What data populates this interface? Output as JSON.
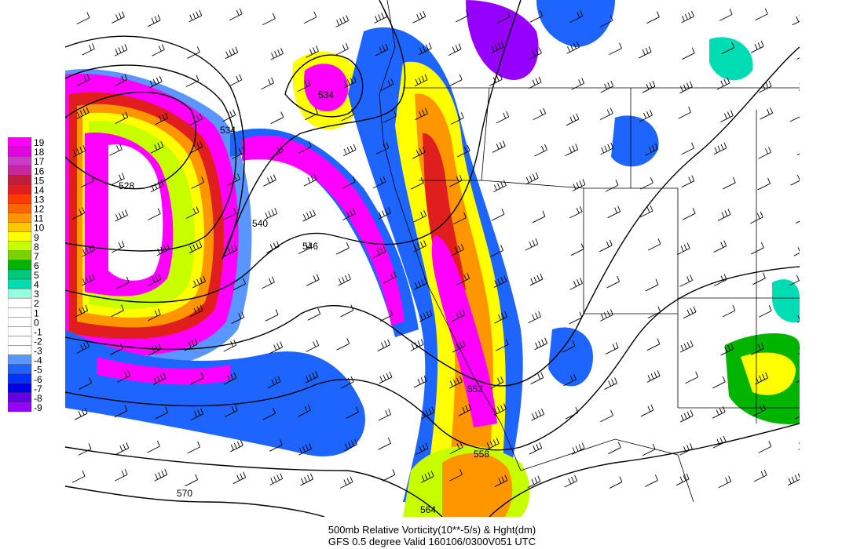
{
  "title": "500mb Relative Vorticity(10**-5/s) & Hght(dm)",
  "subtitle": "GFS 0.5 degree Valid 160106/0300V051 UTC",
  "legend": {
    "levels": [
      "19",
      "18",
      "17",
      "16",
      "15",
      "14",
      "13",
      "12",
      "11",
      "10",
      "9",
      "8",
      "7",
      "6",
      "5",
      "4",
      "3",
      "2",
      "1",
      "0",
      "-1",
      "-2",
      "-3",
      "-4",
      "-5",
      "-6",
      "-7",
      "-8",
      "-9"
    ],
    "colors": [
      "#ff00ff",
      "#e600e6",
      "#c83cc8",
      "#c8289b",
      "#be1e3c",
      "#e11e1e",
      "#ff3c00",
      "#ff6400",
      "#ff9600",
      "#ffc800",
      "#ffff00",
      "#c8ff00",
      "#78d200",
      "#00b400",
      "#00c878",
      "#00dcb4",
      "#96ffdc",
      "#ffffff",
      "#ffffff",
      "#ffffff",
      "#ffffff",
      "#ffffff",
      "#ffffff",
      "#5a96ff",
      "#1e64ff",
      "#0032ff",
      "#0000e6",
      "#6400e6",
      "#9600ff"
    ]
  },
  "contours": [
    {
      "label": "528"
    },
    {
      "label": "534"
    },
    {
      "label": "534"
    },
    {
      "label": "540"
    },
    {
      "label": "546"
    },
    {
      "label": "552"
    },
    {
      "label": "558"
    },
    {
      "label": "564"
    },
    {
      "label": "570"
    }
  ],
  "colors": {
    "magenta": "#ff00ff",
    "purple": "#9600ff",
    "blue": "#1e64ff",
    "lightblue": "#5a96ff",
    "red": "#e11e1e",
    "orange": "#ff9600",
    "yellow": "#ffff00",
    "yellowgreen": "#c8ff00",
    "green": "#00b400",
    "teal": "#00dcb4",
    "aqua": "#96ffdc"
  }
}
